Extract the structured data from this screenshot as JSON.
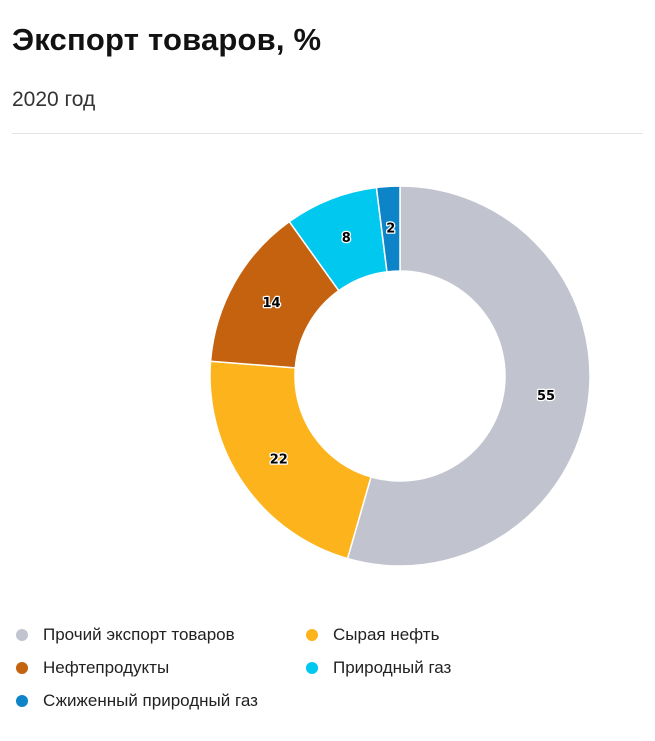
{
  "header": {
    "title": "Экспорт товаров, %",
    "subtitle": "2020 год"
  },
  "chart_data": {
    "type": "pie",
    "donut": true,
    "title": "Экспорт товаров, %",
    "subtitle": "2020 год",
    "start_angle_deg": 0,
    "direction": "clockwise",
    "legend_position": "bottom",
    "slices": [
      {
        "name": "Прочий экспорт товаров",
        "value": 55,
        "label": "55",
        "color": "#c1c4cf"
      },
      {
        "name": "Сырая нефть",
        "value": 22,
        "label": "22",
        "color": "#fdb41c"
      },
      {
        "name": "Нефтепродукты",
        "value": 14,
        "label": "14",
        "color": "#c5620f"
      },
      {
        "name": "Природный газ",
        "value": 8,
        "label": "8",
        "color": "#00c8ef"
      },
      {
        "name": "Сжиженный природный газ",
        "value": 2,
        "label": "2",
        "color": "#0d84c8"
      }
    ]
  }
}
